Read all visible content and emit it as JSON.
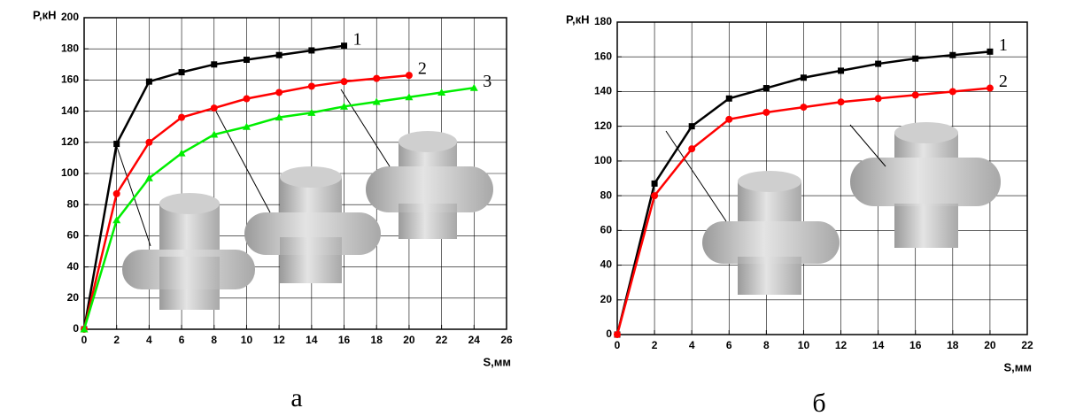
{
  "chart_data": [
    {
      "type": "line",
      "caption": "а",
      "xlabel": "S,мм",
      "ylabel": "P,кН",
      "x": [
        0,
        2,
        4,
        6,
        8,
        10,
        12,
        14,
        16,
        18,
        20,
        22,
        24
      ],
      "series": [
        {
          "name": "1",
          "color": "#000000",
          "marker": "square",
          "values": [
            0,
            119,
            159,
            165,
            170,
            173,
            176,
            179,
            182,
            null,
            null,
            null,
            null
          ]
        },
        {
          "name": "2",
          "color": "#ff0000",
          "marker": "circle",
          "values": [
            0,
            87,
            120,
            136,
            142,
            148,
            152,
            156,
            159,
            161,
            163,
            null,
            null
          ]
        },
        {
          "name": "3",
          "color": "#00ee00",
          "marker": "triangle",
          "values": [
            0,
            70,
            97,
            113,
            125,
            130,
            136,
            139,
            143,
            146,
            149,
            152,
            155
          ]
        }
      ],
      "xlim": [
        0,
        26
      ],
      "ylim": [
        0,
        200
      ],
      "xticks": [
        0,
        2,
        4,
        6,
        8,
        10,
        12,
        14,
        16,
        18,
        20,
        22,
        24,
        26
      ],
      "yticks": [
        0,
        20,
        40,
        60,
        80,
        100,
        120,
        140,
        160,
        180,
        200
      ],
      "grid": true
    },
    {
      "type": "line",
      "caption": "б",
      "xlabel": "S,мм",
      "ylabel": "P,кН",
      "x": [
        0,
        2,
        4,
        6,
        8,
        10,
        12,
        14,
        16,
        18,
        20
      ],
      "series": [
        {
          "name": "1",
          "color": "#000000",
          "marker": "square",
          "values": [
            0,
            87,
            120,
            136,
            142,
            148,
            152,
            156,
            159,
            161,
            163
          ]
        },
        {
          "name": "2",
          "color": "#ff0000",
          "marker": "circle",
          "values": [
            0,
            80,
            107,
            124,
            128,
            131,
            134,
            136,
            138,
            140,
            142
          ]
        }
      ],
      "xlim": [
        0,
        22
      ],
      "ylim": [
        0,
        180
      ],
      "xticks": [
        0,
        2,
        4,
        6,
        8,
        10,
        12,
        14,
        16,
        18,
        20,
        22
      ],
      "yticks": [
        0,
        20,
        40,
        60,
        80,
        100,
        120,
        140,
        160,
        180
      ],
      "grid": true
    }
  ]
}
